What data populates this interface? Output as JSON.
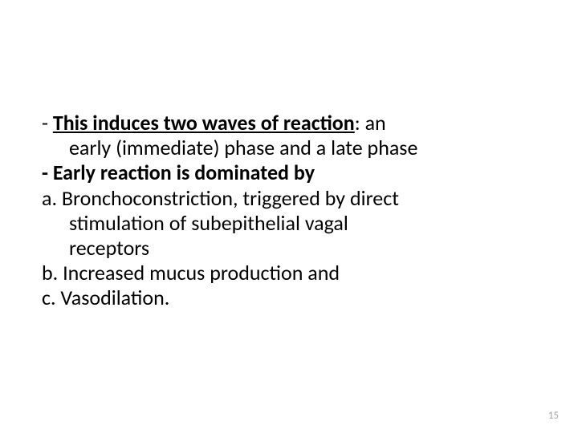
{
  "content": {
    "dash1": "- ",
    "bold1": "This induces two waves of reaction",
    "colon1": ": an",
    "line2": "early (immediate) phase and a late phase",
    "bold2": "- Early reaction is dominated by",
    "line4a": "a.  Bronchoconstriction, triggered by direct",
    "line5": "stimulation of subepithelial vagal",
    "line6": "receptors",
    "line7": "b.  Increased mucus production and",
    "line8": "c.  Vasodilation."
  },
  "page_number": "15",
  "styling": {
    "background_color": "#ffffff",
    "text_color": "#000000",
    "font_size": 26,
    "page_number_color": "#a6a6a6",
    "page_number_fontsize": 13
  }
}
